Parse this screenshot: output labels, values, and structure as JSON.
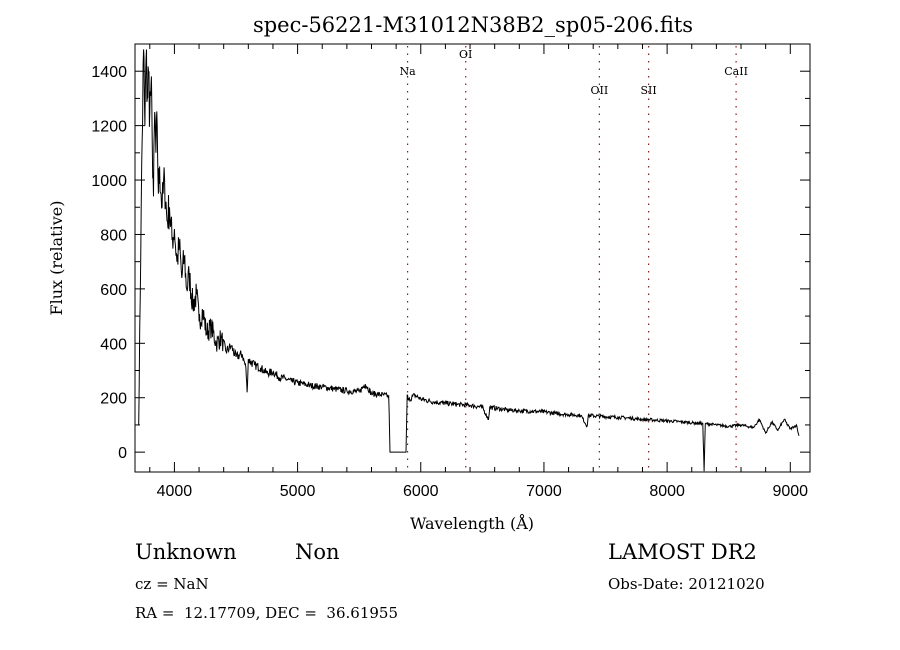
{
  "chart_data": {
    "type": "line",
    "title": "spec-56221-M31012N38B2_sp05-206.fits",
    "xlabel": "Wavelength (Å)",
    "ylabel": "Flux (relative)",
    "xlim": [
      3680,
      9160
    ],
    "ylim": [
      -73,
      1500
    ],
    "xticks": [
      4000,
      5000,
      6000,
      7000,
      8000,
      9000
    ],
    "yticks": [
      0,
      200,
      400,
      600,
      800,
      1000,
      1200,
      1400
    ],
    "grid": false,
    "line_color": "#000000",
    "marker_color": "#8b1a1a",
    "lines": [
      {
        "label": "Na",
        "wavelength": 5893
      },
      {
        "label": "OI",
        "wavelength": 6365
      },
      {
        "label": "OII",
        "wavelength": 7450
      },
      {
        "label": "SII",
        "wavelength": 7850
      },
      {
        "label": "CaII",
        "wavelength": 8560
      }
    ],
    "series": [
      {
        "name": "spectrum",
        "points": [
          [
            3710,
            100
          ],
          [
            3730,
            900
          ],
          [
            3750,
            1480
          ],
          [
            3760,
            1200
          ],
          [
            3770,
            1450
          ],
          [
            3780,
            1300
          ],
          [
            3790,
            1400
          ],
          [
            3800,
            1250
          ],
          [
            3810,
            1350
          ],
          [
            3820,
            1150
          ],
          [
            3830,
            940
          ],
          [
            3840,
            1250
          ],
          [
            3850,
            1100
          ],
          [
            3860,
            1200
          ],
          [
            3870,
            950
          ],
          [
            3880,
            1050
          ],
          [
            3900,
            900
          ],
          [
            3920,
            1000
          ],
          [
            3940,
            850
          ],
          [
            3960,
            900
          ],
          [
            3980,
            780
          ],
          [
            4000,
            820
          ],
          [
            4020,
            700
          ],
          [
            4040,
            760
          ],
          [
            4060,
            640
          ],
          [
            4080,
            720
          ],
          [
            4100,
            600
          ],
          [
            4120,
            650
          ],
          [
            4150,
            540
          ],
          [
            4180,
            580
          ],
          [
            4200,
            480
          ],
          [
            4230,
            520
          ],
          [
            4260,
            440
          ],
          [
            4300,
            460
          ],
          [
            4340,
            400
          ],
          [
            4380,
            420
          ],
          [
            4420,
            370
          ],
          [
            4460,
            390
          ],
          [
            4500,
            350
          ],
          [
            4550,
            360
          ],
          [
            4580,
            310
          ],
          [
            4590,
            220
          ],
          [
            4600,
            340
          ],
          [
            4650,
            320
          ],
          [
            4700,
            310
          ],
          [
            4750,
            290
          ],
          [
            4800,
            295
          ],
          [
            4850,
            275
          ],
          [
            4900,
            270
          ],
          [
            4950,
            260
          ],
          [
            5000,
            255
          ],
          [
            5100,
            245
          ],
          [
            5200,
            240
          ],
          [
            5300,
            232
          ],
          [
            5400,
            225
          ],
          [
            5500,
            222
          ],
          [
            5550,
            250
          ],
          [
            5600,
            215
          ],
          [
            5700,
            210
          ],
          [
            5740,
            205
          ],
          [
            5750,
            0
          ],
          [
            5880,
            0
          ],
          [
            5890,
            210
          ],
          [
            5900,
            190
          ],
          [
            5950,
            210
          ],
          [
            6000,
            195
          ],
          [
            6100,
            185
          ],
          [
            6200,
            180
          ],
          [
            6300,
            175
          ],
          [
            6400,
            172
          ],
          [
            6500,
            165
          ],
          [
            6550,
            120
          ],
          [
            6560,
            165
          ],
          [
            6700,
            155
          ],
          [
            6800,
            152
          ],
          [
            6900,
            150
          ],
          [
            7000,
            148
          ],
          [
            7100,
            142
          ],
          [
            7200,
            138
          ],
          [
            7300,
            135
          ],
          [
            7350,
            95
          ],
          [
            7360,
            135
          ],
          [
            7500,
            130
          ],
          [
            7600,
            128
          ],
          [
            7700,
            125
          ],
          [
            7800,
            120
          ],
          [
            7900,
            118
          ],
          [
            8000,
            115
          ],
          [
            8100,
            112
          ],
          [
            8200,
            108
          ],
          [
            8290,
            105
          ],
          [
            8300,
            -70
          ],
          [
            8310,
            105
          ],
          [
            8400,
            100
          ],
          [
            8500,
            95
          ],
          [
            8600,
            100
          ],
          [
            8700,
            90
          ],
          [
            8750,
            120
          ],
          [
            8800,
            70
          ],
          [
            8850,
            110
          ],
          [
            8900,
            80
          ],
          [
            8950,
            120
          ],
          [
            9000,
            85
          ],
          [
            9050,
            100
          ],
          [
            9070,
            60
          ]
        ]
      }
    ]
  },
  "info": {
    "object_class": "Unknown",
    "subclass": "Non",
    "cz": "cz = NaN",
    "coords": "RA =  12.17709, DEC =  36.61955",
    "survey": "LAMOST DR2",
    "obs_date": "Obs-Date: 20121020"
  }
}
